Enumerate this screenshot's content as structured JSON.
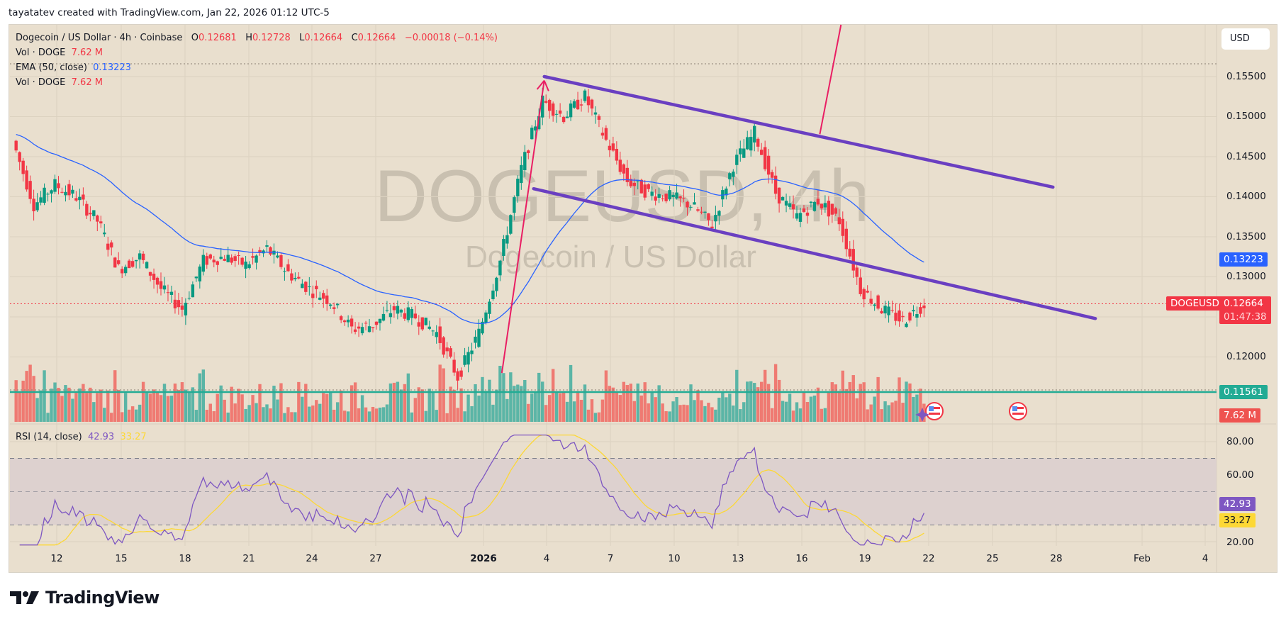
{
  "attribution": "tayatatev created with TradingView.com, Jan 22, 2026 01:12 UTC-5",
  "legend": {
    "symbol_line": "Dogecoin / US Dollar · 4h · Coinbase",
    "o_label": "O",
    "o_value": "0.12681",
    "h_label": "H",
    "h_value": "0.12728",
    "l_label": "L",
    "l_value": "0.12664",
    "c_label": "C",
    "c_value": "0.12664",
    "change": "−0.00018 (−0.14%)",
    "vol1_label": "Vol · DOGE",
    "vol1_value": "7.62 M",
    "ema_label": "EMA (50, close)",
    "ema_value": "0.13223",
    "vol2_label": "Vol · DOGE",
    "vol2_value": "7.62 M",
    "rsi_label": "RSI (14, close)",
    "rsi_value": "42.93",
    "rsi_ma_value": "33.27"
  },
  "watermark": {
    "ticker": "DOGEUSD, 4h",
    "name": "Dogecoin / US Dollar"
  },
  "currency_button": "USD",
  "price_axis": {
    "ticks": [
      "0.15500",
      "0.15000",
      "0.14500",
      "0.14000",
      "0.13500",
      "0.13000",
      "0.12000"
    ],
    "ema_tag": "0.13223",
    "symbol_tag": "DOGEUSD",
    "price_tag": "0.12664",
    "countdown": "01:47:38",
    "vol_ma_tag": "0.11561",
    "vol_tag": "7.62 M"
  },
  "rsi_axis": {
    "ticks": [
      "80.00",
      "60.00",
      "20.00"
    ],
    "rsi_tag": "42.93",
    "rsi_ma_tag": "33.27"
  },
  "time_axis": [
    "12",
    "15",
    "18",
    "21",
    "24",
    "27",
    "2026",
    "4",
    "7",
    "10",
    "13",
    "16",
    "19",
    "22",
    "25",
    "28",
    "Feb",
    "4"
  ],
  "brand": "TradingView",
  "colors": {
    "up": "#089981",
    "down": "#f23645",
    "vol_up": "#5bb5a6",
    "vol_down": "#ef7a72",
    "ema": "#2962ff",
    "rsi": "#7e57c2",
    "rsi_ma": "#fdd835",
    "channel": "#6a3fc1",
    "arrow": "#e91e63",
    "bg": "#e9dfce"
  },
  "chart_data": {
    "type": "candlestick",
    "title": "Dogecoin / US Dollar · 4h · Coinbase",
    "symbol": "DOGEUSD",
    "timeframe": "4h",
    "x_tick_labels": [
      "12",
      "15",
      "18",
      "21",
      "24",
      "27",
      "2026",
      "4",
      "7",
      "10",
      "13",
      "16",
      "19",
      "22",
      "25",
      "28",
      "Feb",
      "4"
    ],
    "y_tick_labels": [
      "0.12000",
      "0.13000",
      "0.13500",
      "0.14000",
      "0.14500",
      "0.15000",
      "0.15500"
    ],
    "ylim": [
      0.1135,
      0.158
    ],
    "last": {
      "open": 0.12681,
      "high": 0.12728,
      "low": 0.12664,
      "close": 0.12664,
      "change": -0.00018,
      "change_pct": -0.14
    },
    "price_path": [
      {
        "date": "Dec 10",
        "price": 0.147
      },
      {
        "date": "Dec 11",
        "price": 0.139
      },
      {
        "date": "Dec 12",
        "price": 0.1415
      },
      {
        "date": "Dec 13",
        "price": 0.14
      },
      {
        "date": "Dec 14",
        "price": 0.137
      },
      {
        "date": "Dec 15",
        "price": 0.131
      },
      {
        "date": "Dec 16",
        "price": 0.1325
      },
      {
        "date": "Dec 17",
        "price": 0.1285
      },
      {
        "date": "Dec 18",
        "price": 0.126
      },
      {
        "date": "Dec 19",
        "price": 0.132
      },
      {
        "date": "Dec 20",
        "price": 0.1325
      },
      {
        "date": "Dec 21",
        "price": 0.1315
      },
      {
        "date": "Dec 22",
        "price": 0.1335
      },
      {
        "date": "Dec 23",
        "price": 0.1305
      },
      {
        "date": "Dec 24",
        "price": 0.1285
      },
      {
        "date": "Dec 25",
        "price": 0.127
      },
      {
        "date": "Dec 26",
        "price": 0.1235
      },
      {
        "date": "Dec 27",
        "price": 0.124
      },
      {
        "date": "Dec 28",
        "price": 0.126
      },
      {
        "date": "Dec 29",
        "price": 0.125
      },
      {
        "date": "Dec 30",
        "price": 0.123
      },
      {
        "date": "Dec 31",
        "price": 0.1175
      },
      {
        "date": "Jan 1",
        "price": 0.123
      },
      {
        "date": "Jan 2",
        "price": 0.132
      },
      {
        "date": "Jan 3",
        "price": 0.1435
      },
      {
        "date": "Jan 4",
        "price": 0.152
      },
      {
        "date": "Jan 5",
        "price": 0.15
      },
      {
        "date": "Jan 6",
        "price": 0.1525
      },
      {
        "date": "Jan 7",
        "price": 0.147
      },
      {
        "date": "Jan 8",
        "price": 0.142
      },
      {
        "date": "Jan 9",
        "price": 0.1405
      },
      {
        "date": "Jan 10",
        "price": 0.14
      },
      {
        "date": "Jan 11",
        "price": 0.139
      },
      {
        "date": "Jan 12",
        "price": 0.1365
      },
      {
        "date": "Jan 13",
        "price": 0.144
      },
      {
        "date": "Jan 14",
        "price": 0.148
      },
      {
        "date": "Jan 15",
        "price": 0.1405
      },
      {
        "date": "Jan 16",
        "price": 0.1375
      },
      {
        "date": "Jan 17",
        "price": 0.1395
      },
      {
        "date": "Jan 18",
        "price": 0.137
      },
      {
        "date": "Jan 19",
        "price": 0.1285
      },
      {
        "date": "Jan 20",
        "price": 0.126
      },
      {
        "date": "Jan 21",
        "price": 0.1245
      },
      {
        "date": "Jan 22",
        "price": 0.12664
      }
    ],
    "series": [
      {
        "name": "EMA (50, close)",
        "last": 0.13223
      },
      {
        "name": "Vol · DOGE",
        "last": "7.62M",
        "ma_level": 0.11561
      },
      {
        "name": "RSI (14, close)",
        "last": 42.93,
        "ma_last": 33.27,
        "bands": [
          70,
          50,
          30
        ],
        "ylim": [
          15,
          85
        ]
      }
    ],
    "drawings": [
      {
        "type": "trendline",
        "label": "channel upper",
        "from": {
          "date": "Jan 4",
          "price": 0.155
        },
        "to": {
          "date": "Jan 28",
          "price": 0.1412
        }
      },
      {
        "type": "trendline",
        "label": "channel lower",
        "from": {
          "date": "Jan 3.5",
          "price": 0.141
        },
        "to": {
          "date": "Jan 30",
          "price": 0.1248
        }
      },
      {
        "type": "arrow",
        "label": "up move",
        "from": {
          "date": "Jan 2",
          "price": 0.118
        },
        "to": {
          "date": "Jan 4",
          "price": 0.1545
        }
      },
      {
        "type": "line",
        "label": "breakout projection",
        "from": {
          "date": "Jan 17",
          "price": 0.1478
        },
        "to": {
          "date": "Jan 18",
          "price": 0.159
        }
      }
    ],
    "legend_position": "top-left",
    "grid": true
  }
}
